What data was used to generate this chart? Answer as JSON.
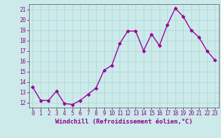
{
  "x": [
    0,
    1,
    2,
    3,
    4,
    5,
    6,
    7,
    8,
    9,
    10,
    11,
    12,
    13,
    14,
    15,
    16,
    17,
    18,
    19,
    20,
    21,
    22,
    23
  ],
  "y": [
    13.5,
    12.2,
    12.2,
    13.1,
    11.9,
    11.8,
    12.2,
    12.8,
    13.4,
    15.1,
    15.6,
    17.7,
    18.9,
    18.9,
    17.0,
    18.6,
    17.5,
    19.5,
    21.1,
    20.3,
    19.0,
    18.3,
    17.0,
    16.1
  ],
  "line_color": "#990099",
  "marker": "D",
  "marker_size": 2.5,
  "line_width": 1.0,
  "bg_color": "#cceaea",
  "grid_color": "#b0d8d8",
  "xlabel": "Windchill (Refroidissement éolien,°C)",
  "ylim": [
    11.5,
    21.5
  ],
  "yticks": [
    12,
    13,
    14,
    15,
    16,
    17,
    18,
    19,
    20,
    21
  ],
  "xticks": [
    0,
    1,
    2,
    3,
    4,
    5,
    6,
    7,
    8,
    9,
    10,
    11,
    12,
    13,
    14,
    15,
    16,
    17,
    18,
    19,
    20,
    21,
    22,
    23
  ],
  "tick_label_fontsize": 5.5,
  "xlabel_fontsize": 6.5,
  "axis_color": "#880088",
  "spine_color": "#666666"
}
